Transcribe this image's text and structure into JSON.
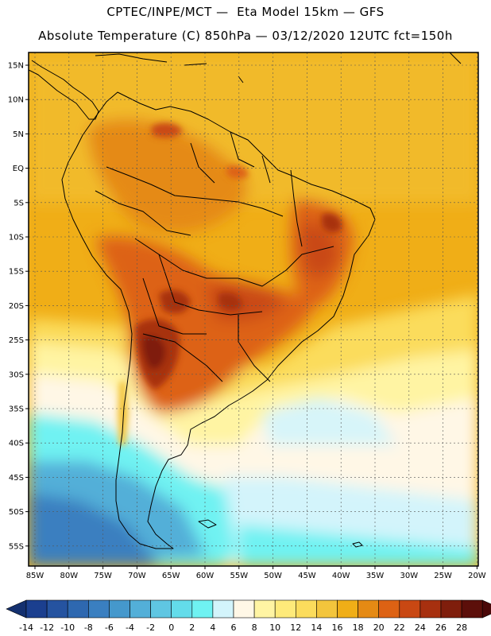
{
  "title": {
    "line1": "CPTEC/INPE/MCT —  Eta Model 15km — GFS",
    "line2": "Absolute Temperature (C) 850hPa — 03/12/2020 12UTC fct=150h"
  },
  "map": {
    "lat_ticks": [
      "15N",
      "10N",
      "5N",
      "EQ",
      "5S",
      "10S",
      "15S",
      "20S",
      "25S",
      "30S",
      "35S",
      "40S",
      "45S",
      "50S",
      "55S"
    ],
    "lon_ticks": [
      "85W",
      "80W",
      "75W",
      "70W",
      "65W",
      "60W",
      "55W",
      "50W",
      "45W",
      "40W",
      "35W",
      "30W",
      "25W",
      "20W"
    ]
  },
  "colorbar": {
    "labels": [
      "-14",
      "-12",
      "-10",
      "-8",
      "-6",
      "-4",
      "-2",
      "0",
      "2",
      "4",
      "6",
      "8",
      "10",
      "12",
      "14",
      "16",
      "18",
      "20",
      "22",
      "24",
      "26",
      "28"
    ],
    "colors": [
      "#1b3f8f",
      "#2553a0",
      "#2e68b0",
      "#3a7fc0",
      "#4598cc",
      "#53afd8",
      "#5fc6e2",
      "#63dcea",
      "#6ff2f2",
      "#d3f4fb",
      "#fff7e6",
      "#fff4a3",
      "#feea7a",
      "#fbdc5c",
      "#f3c53c",
      "#f0ae17",
      "#e58a14",
      "#dd6214",
      "#c94813",
      "#a7300f",
      "#7f1e0c",
      "#5c0f0a"
    ],
    "under_color": "#14306f",
    "over_color": "#4a0808"
  }
}
